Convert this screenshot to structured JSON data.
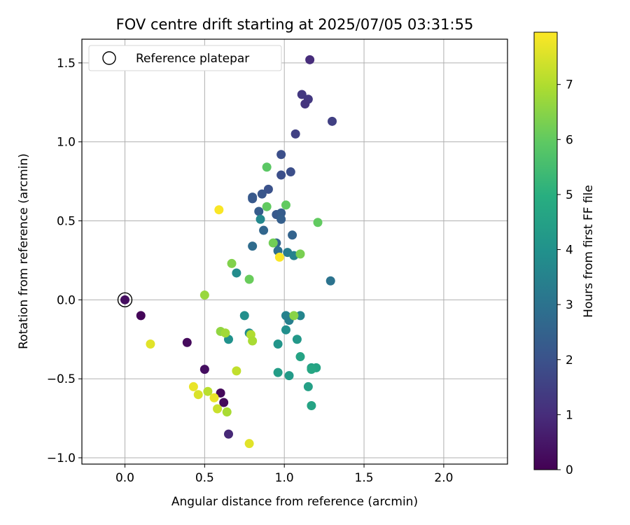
{
  "chart_data": {
    "type": "scatter",
    "title": "FOV centre drift starting at 2025/07/05 03:31:55",
    "xlabel": "Angular distance from reference (arcmin)",
    "ylabel": "Rotation from reference (arcmin)",
    "xlim": [
      -0.27,
      2.4
    ],
    "ylim": [
      -1.04,
      1.65
    ],
    "xticks": [
      0.0,
      0.5,
      1.0,
      1.5,
      2.0
    ],
    "xtick_labels": [
      "0.0",
      "0.5",
      "1.0",
      "1.5",
      "2.0"
    ],
    "yticks": [
      -1.0,
      -0.5,
      0.0,
      0.5,
      1.0,
      1.5
    ],
    "ytick_labels": [
      "−1.0",
      "−0.5",
      "0.0",
      "0.5",
      "1.0",
      "1.5"
    ],
    "grid": true,
    "legend": {
      "placement": "top-left",
      "entries": [
        "Reference platepar"
      ]
    },
    "reference_point": {
      "x": 0.0,
      "y": 0.0
    },
    "colorbar": {
      "label": "Hours from first FF file",
      "colormap": "viridis",
      "range": [
        0,
        7.95
      ],
      "ticks": [
        0,
        1,
        2,
        3,
        4,
        5,
        6,
        7
      ],
      "tick_labels": [
        "0",
        "1",
        "2",
        "3",
        "4",
        "5",
        "6",
        "7"
      ]
    },
    "points": [
      {
        "x": 0.0,
        "y": 0.0,
        "h": 0.3
      },
      {
        "x": 0.1,
        "y": -0.1,
        "h": 0.1
      },
      {
        "x": 0.39,
        "y": -0.27,
        "h": 0.2
      },
      {
        "x": 0.5,
        "y": -0.44,
        "h": 0.3
      },
      {
        "x": 0.6,
        "y": -0.59,
        "h": 0.15
      },
      {
        "x": 0.62,
        "y": -0.65,
        "h": 0.2
      },
      {
        "x": 0.65,
        "y": -0.85,
        "h": 0.9
      },
      {
        "x": 1.16,
        "y": 1.52,
        "h": 1.0
      },
      {
        "x": 1.11,
        "y": 1.3,
        "h": 1.3
      },
      {
        "x": 1.15,
        "y": 1.27,
        "h": 1.3
      },
      {
        "x": 1.13,
        "y": 1.24,
        "h": 1.2
      },
      {
        "x": 1.3,
        "y": 1.13,
        "h": 1.5
      },
      {
        "x": 1.07,
        "y": 1.05,
        "h": 1.5
      },
      {
        "x": 0.98,
        "y": 0.92,
        "h": 1.9
      },
      {
        "x": 1.04,
        "y": 0.81,
        "h": 1.9
      },
      {
        "x": 0.98,
        "y": 0.79,
        "h": 1.9
      },
      {
        "x": 0.9,
        "y": 0.7,
        "h": 2.0
      },
      {
        "x": 0.86,
        "y": 0.67,
        "h": 2.1
      },
      {
        "x": 0.8,
        "y": 0.64,
        "h": 2.2
      },
      {
        "x": 0.8,
        "y": 0.65,
        "h": 2.2
      },
      {
        "x": 0.84,
        "y": 0.56,
        "h": 2.3
      },
      {
        "x": 0.95,
        "y": 0.54,
        "h": 2.2
      },
      {
        "x": 0.98,
        "y": 0.55,
        "h": 2.3
      },
      {
        "x": 0.98,
        "y": 0.51,
        "h": 2.4
      },
      {
        "x": 0.87,
        "y": 0.44,
        "h": 2.6
      },
      {
        "x": 1.05,
        "y": 0.41,
        "h": 2.5
      },
      {
        "x": 0.95,
        "y": 0.36,
        "h": 2.6
      },
      {
        "x": 0.8,
        "y": 0.34,
        "h": 2.8
      },
      {
        "x": 0.96,
        "y": 0.31,
        "h": 2.9
      },
      {
        "x": 1.29,
        "y": 0.12,
        "h": 3.0
      },
      {
        "x": 1.02,
        "y": 0.3,
        "h": 3.3
      },
      {
        "x": 1.06,
        "y": 0.28,
        "h": 3.5
      },
      {
        "x": 0.85,
        "y": 0.51,
        "h": 3.7
      },
      {
        "x": 0.7,
        "y": 0.17,
        "h": 3.8
      },
      {
        "x": 0.75,
        "y": -0.1,
        "h": 3.9
      },
      {
        "x": 0.78,
        "y": -0.21,
        "h": 3.8
      },
      {
        "x": 0.65,
        "y": -0.25,
        "h": 4.0
      },
      {
        "x": 1.01,
        "y": -0.1,
        "h": 3.5
      },
      {
        "x": 1.03,
        "y": -0.13,
        "h": 3.4
      },
      {
        "x": 1.1,
        "y": -0.1,
        "h": 3.6
      },
      {
        "x": 1.01,
        "y": -0.19,
        "h": 3.9
      },
      {
        "x": 0.96,
        "y": -0.28,
        "h": 4.1
      },
      {
        "x": 1.08,
        "y": -0.25,
        "h": 4.2
      },
      {
        "x": 0.96,
        "y": -0.46,
        "h": 4.4
      },
      {
        "x": 1.03,
        "y": -0.48,
        "h": 4.3
      },
      {
        "x": 1.1,
        "y": -0.36,
        "h": 4.6
      },
      {
        "x": 1.17,
        "y": -0.43,
        "h": 4.5
      },
      {
        "x": 1.2,
        "y": -0.43,
        "h": 4.6
      },
      {
        "x": 1.17,
        "y": -0.44,
        "h": 4.7
      },
      {
        "x": 1.15,
        "y": -0.55,
        "h": 4.5
      },
      {
        "x": 1.17,
        "y": -0.67,
        "h": 4.6
      },
      {
        "x": 0.89,
        "y": 0.84,
        "h": 5.9
      },
      {
        "x": 0.89,
        "y": 0.59,
        "h": 6.0
      },
      {
        "x": 1.01,
        "y": 0.6,
        "h": 6.0
      },
      {
        "x": 1.21,
        "y": 0.49,
        "h": 6.0
      },
      {
        "x": 0.93,
        "y": 0.36,
        "h": 6.2
      },
      {
        "x": 1.1,
        "y": 0.29,
        "h": 6.3
      },
      {
        "x": 0.67,
        "y": 0.23,
        "h": 6.4
      },
      {
        "x": 0.78,
        "y": 0.13,
        "h": 6.1
      },
      {
        "x": 0.5,
        "y": 0.03,
        "h": 6.7
      },
      {
        "x": 1.06,
        "y": -0.1,
        "h": 6.5
      },
      {
        "x": 0.6,
        "y": -0.2,
        "h": 6.6
      },
      {
        "x": 0.63,
        "y": -0.21,
        "h": 6.8
      },
      {
        "x": 0.79,
        "y": -0.22,
        "h": 7.0
      },
      {
        "x": 0.8,
        "y": -0.26,
        "h": 6.9
      },
      {
        "x": 0.7,
        "y": -0.45,
        "h": 7.2
      },
      {
        "x": 0.52,
        "y": -0.58,
        "h": 7.1
      },
      {
        "x": 0.64,
        "y": -0.71,
        "h": 6.9
      },
      {
        "x": 0.58,
        "y": -0.69,
        "h": 7.3
      },
      {
        "x": 0.16,
        "y": -0.28,
        "h": 7.6
      },
      {
        "x": 0.43,
        "y": -0.55,
        "h": 7.7
      },
      {
        "x": 0.46,
        "y": -0.6,
        "h": 7.5
      },
      {
        "x": 0.56,
        "y": -0.62,
        "h": 7.7
      },
      {
        "x": 0.78,
        "y": -0.91,
        "h": 7.6
      },
      {
        "x": 0.59,
        "y": 0.57,
        "h": 7.9
      },
      {
        "x": 0.97,
        "y": 0.27,
        "h": 7.9
      }
    ]
  }
}
